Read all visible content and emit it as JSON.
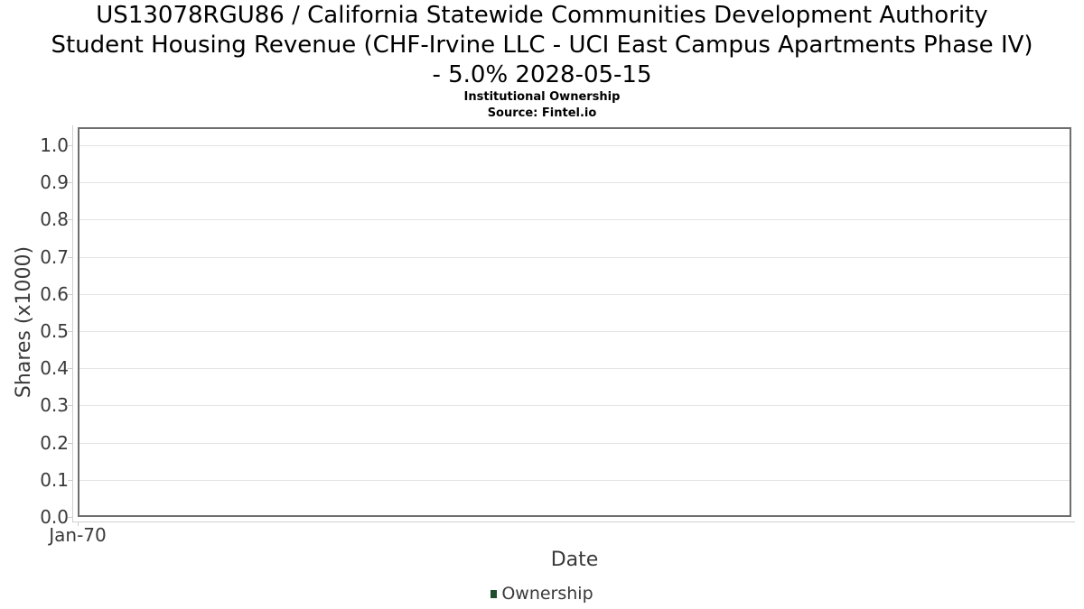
{
  "header": {
    "title_lines": [
      "US13078RGU86 / California Statewide Communities Development Authority",
      "Student Housing Revenue (CHF-Irvine LLC - UCI East Campus Apartments Phase IV)",
      "- 5.0% 2028-05-15"
    ],
    "subtitle": "Institutional Ownership",
    "source": "Source: Fintel.io"
  },
  "chart_data": {
    "type": "line",
    "title": "US13078RGU86 / California Statewide Communities Development Authority Student Housing Revenue (CHF-Irvine LLC - UCI East Campus Apartments Phase IV) - 5.0% 2028-05-15",
    "subtitle": "Institutional Ownership",
    "source": "Source: Fintel.io",
    "xlabel": "Date",
    "ylabel": "Shares (x1000)",
    "x_ticks": [
      "Jan-70"
    ],
    "y_ticks": [
      0.0,
      0.1,
      0.2,
      0.3,
      0.4,
      0.5,
      0.6,
      0.7,
      0.8,
      0.9,
      1.0
    ],
    "ylim": [
      0.0,
      1.05
    ],
    "grid": true,
    "legend_position": "bottom",
    "series": [
      {
        "name": "Ownership",
        "color": "#1f4e2c",
        "x": [],
        "values": []
      }
    ],
    "colors": {
      "grid": "#e4e4e4",
      "plot_border": "#6e6e6e",
      "axis_line": "#d0d0d0",
      "tick_text": "#3a3a3a",
      "title_text": "#000000",
      "legend_swatch": "#1f4e2c"
    }
  }
}
